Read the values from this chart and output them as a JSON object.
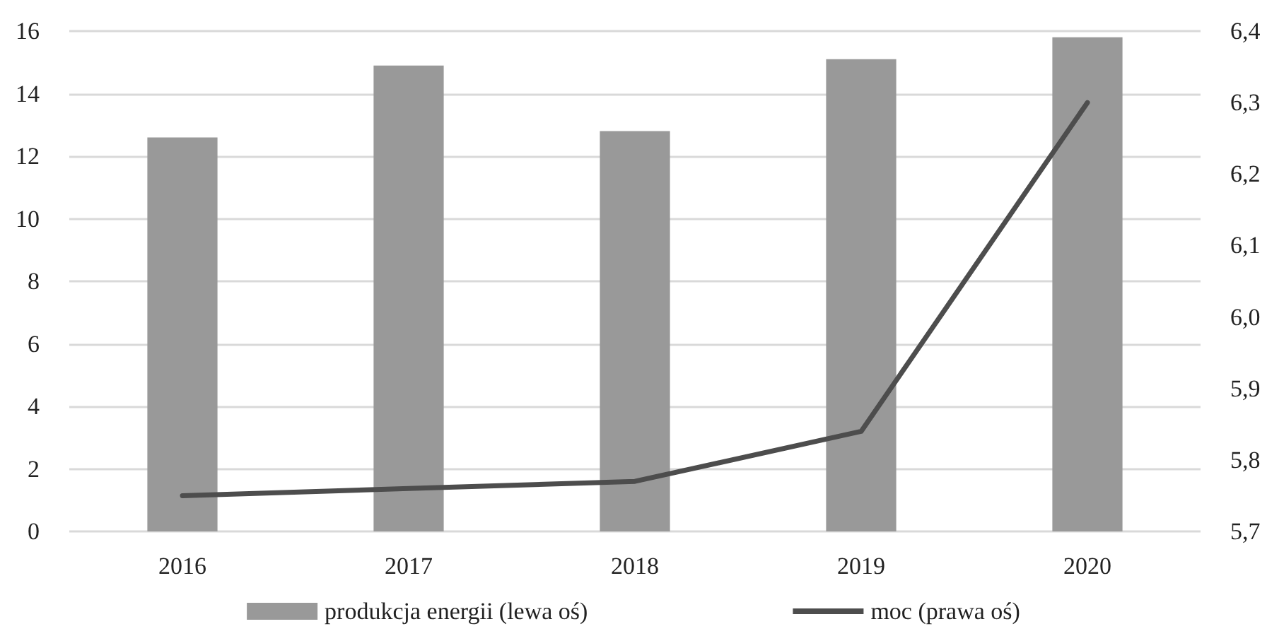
{
  "chart_data": {
    "type": "bar",
    "categories": [
      "2016",
      "2017",
      "2018",
      "2019",
      "2020"
    ],
    "series": [
      {
        "name": "produkcja energii (lewa oś)",
        "color": "#999999",
        "values": [
          12.6,
          14.9,
          12.8,
          15.1,
          15.8
        ]
      },
      {
        "name": "moc (prawa oś)",
        "type": "line",
        "axis": "y2",
        "color": "#4d4d4d",
        "values": [
          5.75,
          5.76,
          5.77,
          5.84,
          6.3
        ]
      }
    ],
    "ylim": [
      0,
      16
    ],
    "yticks": [
      0,
      2,
      4,
      6,
      8,
      10,
      12,
      14,
      16
    ],
    "y2lim": [
      5.7,
      6.4
    ],
    "y2ticks": [
      {
        "value": 5.7,
        "label": "5,7"
      },
      {
        "value": 5.8,
        "label": "5,8"
      },
      {
        "value": 5.9,
        "label": "5,9"
      },
      {
        "value": 6.0,
        "label": "6,0"
      },
      {
        "value": 6.1,
        "label": "6,1"
      },
      {
        "value": 6.2,
        "label": "6,2"
      },
      {
        "value": 6.3,
        "label": "6,3"
      },
      {
        "value": 6.4,
        "label": "6,4"
      }
    ],
    "grid": "y",
    "legend": "bottom",
    "marker": "none",
    "line_style": "solid"
  }
}
